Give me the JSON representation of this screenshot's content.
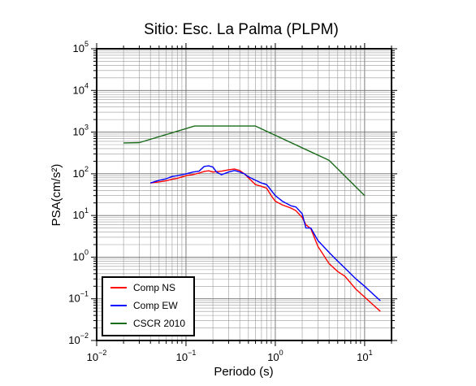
{
  "chart_data": {
    "type": "line",
    "title": "Sitio: Esc. La Palma (PLPM)",
    "xlabel": "Periodo (s)",
    "ylabel": "PSA(cm/s²)",
    "xscale": "log",
    "yscale": "log",
    "xlim": [
      0.01,
      20
    ],
    "ylim": [
      0.01,
      100000
    ],
    "grid": true,
    "legend_position": "bottom-left",
    "x_tick_labels": [
      {
        "base": "10",
        "exp": "−2",
        "value": 0.01
      },
      {
        "base": "10",
        "exp": "−1",
        "value": 0.1
      },
      {
        "base": "10",
        "exp": "0",
        "value": 1
      },
      {
        "base": "10",
        "exp": "1",
        "value": 10
      }
    ],
    "y_tick_labels": [
      {
        "base": "10",
        "exp": "−2",
        "value": 0.01
      },
      {
        "base": "10",
        "exp": "−1",
        "value": 0.1
      },
      {
        "base": "10",
        "exp": "0",
        "value": 1
      },
      {
        "base": "10",
        "exp": "1",
        "value": 10
      },
      {
        "base": "10",
        "exp": "2",
        "value": 100
      },
      {
        "base": "10",
        "exp": "3",
        "value": 1000
      },
      {
        "base": "10",
        "exp": "4",
        "value": 10000
      },
      {
        "base": "10",
        "exp": "5",
        "value": 100000
      }
    ],
    "series": [
      {
        "name": "Comp NS",
        "color": "#ff0000",
        "points": [
          [
            0.04,
            60
          ],
          [
            0.05,
            64
          ],
          [
            0.06,
            68
          ],
          [
            0.07,
            74
          ],
          [
            0.08,
            78
          ],
          [
            0.09,
            84
          ],
          [
            0.1,
            90
          ],
          [
            0.12,
            96
          ],
          [
            0.14,
            104
          ],
          [
            0.16,
            114
          ],
          [
            0.18,
            118
          ],
          [
            0.2,
            110
          ],
          [
            0.25,
            115
          ],
          [
            0.3,
            125
          ],
          [
            0.35,
            130
          ],
          [
            0.4,
            120
          ],
          [
            0.45,
            100
          ],
          [
            0.5,
            80
          ],
          [
            0.6,
            55
          ],
          [
            0.7,
            50
          ],
          [
            0.8,
            45
          ],
          [
            0.9,
            30
          ],
          [
            1.0,
            22
          ],
          [
            1.2,
            18
          ],
          [
            1.5,
            15
          ],
          [
            1.7,
            13
          ],
          [
            2.0,
            9
          ],
          [
            2.2,
            6
          ],
          [
            2.5,
            4.8
          ],
          [
            3.0,
            1.8
          ],
          [
            4.0,
            0.7
          ],
          [
            5.0,
            0.45
          ],
          [
            6.0,
            0.35
          ],
          [
            8.0,
            0.17
          ],
          [
            10.0,
            0.11
          ],
          [
            15.0,
            0.05
          ]
        ]
      },
      {
        "name": "Comp EW",
        "color": "#0000ff",
        "points": [
          [
            0.04,
            60
          ],
          [
            0.05,
            70
          ],
          [
            0.06,
            76
          ],
          [
            0.07,
            86
          ],
          [
            0.08,
            90
          ],
          [
            0.09,
            95
          ],
          [
            0.1,
            100
          ],
          [
            0.12,
            110
          ],
          [
            0.14,
            115
          ],
          [
            0.16,
            150
          ],
          [
            0.18,
            155
          ],
          [
            0.2,
            145
          ],
          [
            0.22,
            110
          ],
          [
            0.25,
            95
          ],
          [
            0.3,
            110
          ],
          [
            0.35,
            120
          ],
          [
            0.4,
            110
          ],
          [
            0.45,
            100
          ],
          [
            0.5,
            85
          ],
          [
            0.6,
            70
          ],
          [
            0.7,
            60
          ],
          [
            0.8,
            55
          ],
          [
            1.0,
            30
          ],
          [
            1.2,
            22
          ],
          [
            1.5,
            17
          ],
          [
            1.7,
            16
          ],
          [
            2.0,
            11
          ],
          [
            2.2,
            5
          ],
          [
            2.5,
            5
          ],
          [
            3.0,
            2.5
          ],
          [
            4.0,
            1.3
          ],
          [
            5.0,
            0.8
          ],
          [
            6.0,
            0.55
          ],
          [
            8.0,
            0.3
          ],
          [
            10.0,
            0.2
          ],
          [
            15.0,
            0.09
          ]
        ]
      },
      {
        "name": "CSCR 2010",
        "color": "#1a6b1a",
        "points": [
          [
            0.02,
            550
          ],
          [
            0.03,
            560
          ],
          [
            0.125,
            1400
          ],
          [
            0.6,
            1400
          ],
          [
            4.0,
            210
          ],
          [
            10.0,
            30
          ]
        ]
      }
    ]
  }
}
